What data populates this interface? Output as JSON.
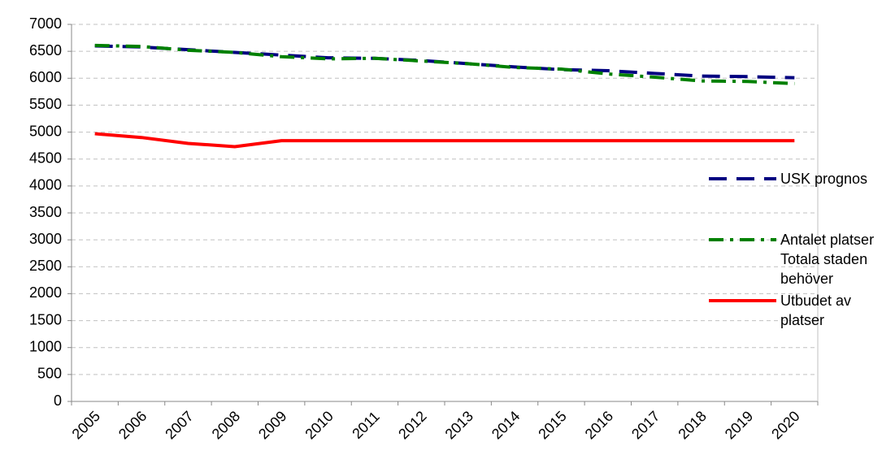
{
  "chart_data": {
    "type": "line",
    "categories": [
      "2005",
      "2006",
      "2007",
      "2008",
      "2009",
      "2010",
      "2011",
      "2012",
      "2013",
      "2014",
      "2015",
      "2016",
      "2017",
      "2018",
      "2019",
      "2020"
    ],
    "series": [
      {
        "name": "USK prognos",
        "color": "#000080",
        "dash": "22 12",
        "values": [
          6600,
          6580,
          6530,
          6480,
          6430,
          6380,
          6370,
          6330,
          6270,
          6210,
          6160,
          6140,
          6090,
          6040,
          6030,
          6010
        ]
      },
      {
        "name": "Antalet platser Totala staden behöver",
        "color": "#008000",
        "dash": "18 8 4 8",
        "values": [
          6610,
          6590,
          6520,
          6480,
          6400,
          6360,
          6370,
          6320,
          6270,
          6200,
          6170,
          6080,
          6020,
          5950,
          5940,
          5900
        ]
      },
      {
        "name": "Utbudet av platser",
        "color": "#ff0000",
        "dash": "none",
        "values": [
          4970,
          4900,
          4790,
          4730,
          4840,
          4840,
          4840,
          4840,
          4840,
          4840,
          4840,
          4840,
          4840,
          4840,
          4840,
          4840
        ]
      }
    ],
    "ylim": [
      0,
      7000
    ],
    "yticks": [
      0,
      500,
      1000,
      1500,
      2000,
      2500,
      3000,
      3500,
      4000,
      4500,
      5000,
      5500,
      6000,
      6500,
      7000
    ],
    "grid": true,
    "legend": "right"
  }
}
